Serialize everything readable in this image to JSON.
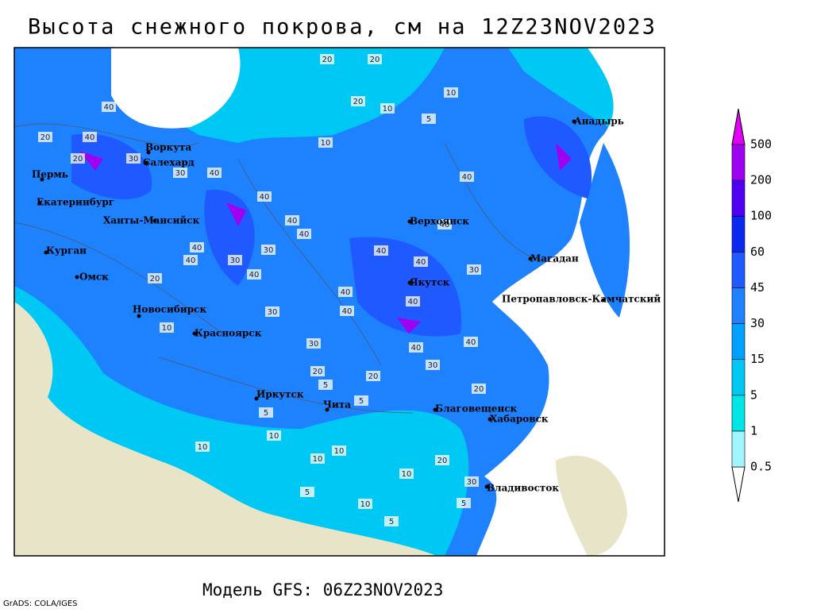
{
  "title": "Высота снежного покрова, см на 12Z23NOV2023",
  "footer": "Модель GFS: 06Z23NOV2023",
  "credit": "GrADS: COLA/IGES",
  "cities": [
    "Воркута",
    "Салехард",
    "Пермь",
    "Екатеринбург",
    "Ханты-Мансийск",
    "Курган",
    "Омск",
    "Новосибирск",
    "Красноярск",
    "Иркутск",
    "Чита",
    "Верхоянск",
    "Якутск",
    "Магадан",
    "Петропавловск-Камчатский",
    "Анадырь",
    "Благовещенск",
    "Хабаровск",
    "Владивосток"
  ],
  "contour_labels": [
    20,
    20,
    20,
    10,
    10,
    5,
    10,
    40,
    40,
    20,
    20,
    30,
    30,
    40,
    40,
    40,
    40,
    30,
    30,
    40,
    40,
    20,
    40,
    30,
    40,
    40,
    40,
    30,
    40,
    40,
    40,
    40,
    30,
    20,
    20,
    10,
    10,
    10,
    5,
    5,
    10,
    20,
    30,
    10,
    5,
    10,
    5,
    5,
    20,
    5,
    10,
    30,
    40,
    40
  ],
  "colorbar": {
    "levels": [
      0.5,
      1,
      5,
      15,
      30,
      45,
      60,
      100,
      200,
      500
    ],
    "colors": [
      "#ffffff",
      "#a0f5ff",
      "#00e6e6",
      "#00c8f5",
      "#00a0ff",
      "#1e82ff",
      "#1e5aff",
      "#0a28f0",
      "#5000f0",
      "#a000f0",
      "#e100f5"
    ]
  }
}
